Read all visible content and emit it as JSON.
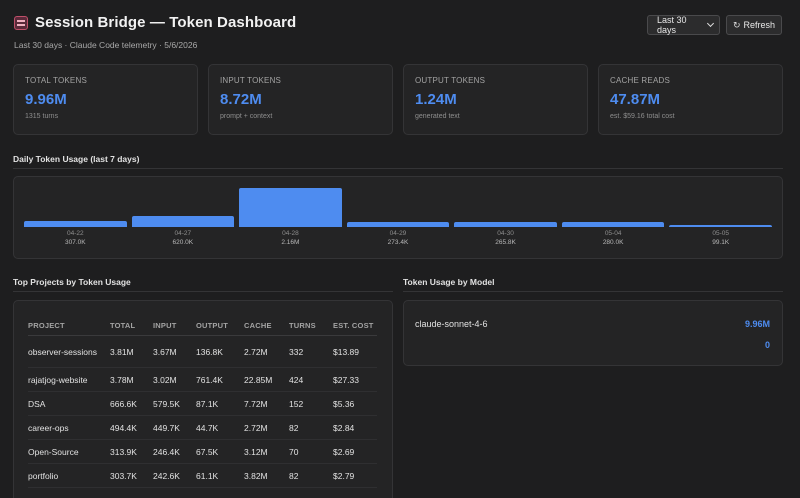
{
  "header": {
    "title": "Session Bridge — Token Dashboard",
    "subtitle": "Last 30 days · Claude Code telemetry · 5/6/2026",
    "range_select": "Last 30 days",
    "refresh_label": "Refresh",
    "icons": {
      "logo": "session-bridge-logo",
      "refresh": "refresh-icon",
      "select": "chevron-down-icon"
    }
  },
  "cards": [
    {
      "label": "TOTAL TOKENS",
      "value": "9.96M",
      "sub": "1315 turns"
    },
    {
      "label": "INPUT TOKENS",
      "value": "8.72M",
      "sub": "prompt + context"
    },
    {
      "label": "OUTPUT TOKENS",
      "value": "1.24M",
      "sub": "generated text"
    },
    {
      "label": "CACHE READS",
      "value": "47.87M",
      "sub": "est. $59.16 total cost"
    }
  ],
  "daily": {
    "title": "Daily Token Usage (last 7 days)",
    "chart_data": {
      "type": "bar",
      "categories": [
        "04-22",
        "04-27",
        "04-28",
        "04-29",
        "04-30",
        "05-04",
        "05-05"
      ],
      "values": [
        307000,
        620000,
        2160000,
        273400,
        265800,
        280000,
        99100
      ],
      "value_labels": [
        "307.0K",
        "620.0K",
        "2.16M",
        "273.4K",
        "265.8K",
        "280.0K",
        "99.1K"
      ],
      "title": "Daily Token Usage (last 7 days)",
      "xlabel": "",
      "ylabel": "",
      "color": "#4e8cf0"
    }
  },
  "projects": {
    "title": "Top Projects by Token Usage",
    "columns": [
      "PROJECT",
      "TOTAL",
      "INPUT",
      "OUTPUT",
      "CACHE",
      "TURNS",
      "EST. COST"
    ],
    "rows": [
      [
        "observer-sessions",
        "3.81M",
        "3.67M",
        "136.8K",
        "2.72M",
        "332",
        "$13.89"
      ],
      [
        "rajatjog-website",
        "3.78M",
        "3.02M",
        "761.4K",
        "22.85M",
        "424",
        "$27.33"
      ],
      [
        "DSA",
        "666.6K",
        "579.5K",
        "87.1K",
        "7.72M",
        "152",
        "$5.36"
      ],
      [
        "career-ops",
        "494.4K",
        "449.7K",
        "44.7K",
        "2.72M",
        "82",
        "$2.84"
      ],
      [
        "Open-Source",
        "313.9K",
        "246.4K",
        "67.5K",
        "3.12M",
        "70",
        "$2.69"
      ],
      [
        "portfolio",
        "303.7K",
        "242.6K",
        "61.1K",
        "3.82M",
        "82",
        "$2.79"
      ]
    ]
  },
  "models": {
    "title": "Token Usage by Model",
    "items": [
      {
        "name": "claude-sonnet-4-6",
        "total": "9.96M",
        "secondary": "0"
      }
    ]
  },
  "colors": {
    "accent": "#4e8cf0",
    "background": "#1e1e1f",
    "panel": "#242425"
  }
}
